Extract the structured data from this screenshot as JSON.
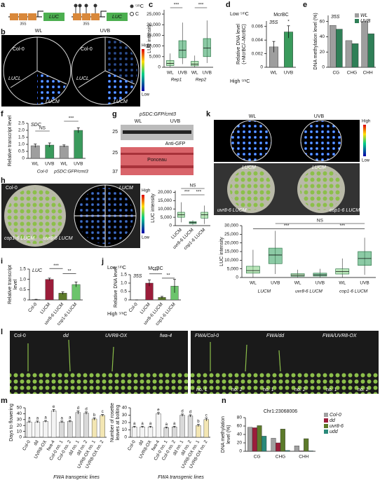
{
  "panel_labels": [
    "a",
    "b",
    "c",
    "d",
    "e",
    "f",
    "g",
    "h",
    "i",
    "j",
    "k",
    "l",
    "m",
    "n"
  ],
  "images": {
    "a": {
      "texts": [
        "35S",
        "LUC",
        "⁵ᵐC",
        "C"
      ]
    },
    "b": {
      "texts": [
        "WL",
        "UVB",
        "Col-0",
        "LUCL",
        "LUCM",
        "Col-0",
        "LUCL",
        "LUCM",
        "High",
        "Low"
      ]
    },
    "g": {
      "texts": [
        "pSDC:GFP/cmt3",
        "WL",
        "UVB",
        "25",
        "Anti-GFP",
        "Ponceau",
        "25",
        "37"
      ]
    },
    "h": {
      "texts": [
        "Col-0",
        "LUCM",
        "cop1-6 LUCM",
        "uvr8-6 LUCM",
        "High",
        "Low"
      ]
    },
    "k": {
      "texts": [
        "WL",
        "UVB",
        "High",
        "Low",
        "LUCM",
        "LUCM",
        "uvr8-6 LUCM",
        "cop1-6 LUCM"
      ]
    },
    "l": {
      "texts": [
        "Col-0",
        "dd",
        "UVR8-OX",
        "fwa-4",
        "FWA/Col-0",
        "FWA/dd",
        "FWA/UVR8-OX",
        "no. 1",
        "no. 2"
      ]
    }
  },
  "chart_data": [
    {
      "panel": "c",
      "type": "box",
      "ylabel": "LUC intensity",
      "categories": [
        "WL",
        "UVB",
        "WL",
        "UVB"
      ],
      "groups": [
        "Rep1",
        "Rep2"
      ],
      "series": [
        {
          "colors": [
            "#7fcf7f",
            "#2e9e5b",
            "#7fcf7f",
            "#2e9e5b"
          ],
          "values": [
            [
              0,
              800,
              1800,
              3200,
              6500
            ],
            [
              1500,
              4500,
              8000,
              12500,
              21000
            ],
            [
              0,
              700,
              1500,
              2800,
              5500
            ],
            [
              2000,
              5000,
              9000,
              13500,
              22000
            ]
          ]
        }
      ],
      "ylim": [
        0,
        27000
      ],
      "yticks": [
        0,
        {
          "value": 5000,
          "label": "5,000"
        },
        {
          "value": 10000,
          "label": "10,000"
        },
        {
          "value": 15000,
          "label": "15,000"
        },
        {
          "value": 20000,
          "label": "20,000"
        },
        {
          "value": 25000,
          "label": "25,000"
        }
      ],
      "annotations": [
        "***",
        "***"
      ]
    },
    {
      "panel": "d",
      "type": "bar",
      "title": "McrBC",
      "subtitle": "35S",
      "y_top_label": "Low ⁵ᵐC",
      "y_bottom_label": "High ⁵ᵐC",
      "ylabel": [
        "Relative DNA level",
        "(+McrBC/–McrBC)"
      ],
      "categories": [
        "WL",
        "UVB"
      ],
      "series": [
        {
          "colors": [
            "#9e9e9e",
            "#3a9a5c"
          ],
          "values": [
            0.003,
            0.0052
          ],
          "errors": [
            0.0008,
            0.0009
          ]
        }
      ],
      "ylim": [
        0,
        0.0068
      ],
      "yticks": [
        0,
        0.002,
        0.004,
        0.006
      ],
      "annotations": [
        "*"
      ]
    },
    {
      "panel": "e",
      "type": "bar",
      "subtitle": "35S",
      "ylabel": "DNA methylation level (%)",
      "categories": [
        "CG",
        "CHG",
        "CHH"
      ],
      "series": [
        {
          "name": "WL",
          "color": "#9e9e9e",
          "values": [
            55,
            35,
            60
          ]
        },
        {
          "name": "UVB",
          "color": "#2f7f57",
          "values": [
            50,
            31,
            44
          ]
        }
      ],
      "ylim": [
        0,
        68
      ],
      "yticks": [
        0,
        20,
        40,
        60
      ],
      "legend": "upper right"
    },
    {
      "panel": "f",
      "type": "bar",
      "subtitle": "SDC",
      "ylabel": "Relative transcript level",
      "categories": [
        "WL",
        "UVB",
        "WL",
        "UVB"
      ],
      "groups": [
        "Col-0",
        "pSDC:GFP/cmt3"
      ],
      "series": [
        {
          "colors": [
            "#9e9e9e",
            "#3a9a5c",
            "#9e9e9e",
            "#3a9a5c"
          ],
          "values": [
            0.9,
            0.95,
            0.88,
            2.0
          ],
          "errors": [
            0.12,
            0.15,
            0.08,
            0.18
          ]
        }
      ],
      "ylim": [
        0,
        2.5
      ],
      "yticks": [
        0,
        0.5,
        {
          "value": 1,
          "label": "1.0"
        },
        1.5,
        {
          "value": 2,
          "label": "2.0"
        },
        2.5
      ],
      "annotations": [
        "NS",
        "***"
      ]
    },
    {
      "panel": "h",
      "type": "box",
      "ylabel": "LUC intensity",
      "categories": [
        "LUCM",
        "uvr8-6 LUCM",
        "cop1-6 LUCM"
      ],
      "series": [
        {
          "colors": [
            "#7fcf7f",
            "#2e9e5b",
            "#7fcf7f"
          ],
          "values": [
            [
              2000,
              5000,
              6500,
              8000,
              14000
            ],
            [
              500,
              1200,
              1800,
              2400,
              3200
            ],
            [
              1000,
              4500,
              6500,
              8000,
              12000
            ]
          ]
        }
      ],
      "ylim": [
        0,
        21000
      ],
      "yticks": [
        0,
        {
          "value": 5000,
          "label": "5,000"
        },
        {
          "value": 10000,
          "label": "10,000"
        },
        {
          "value": 15000,
          "label": "15,000"
        },
        {
          "value": 20000,
          "label": "20,000"
        }
      ],
      "annotations": [
        "NS",
        "***",
        "***"
      ]
    },
    {
      "panel": "i",
      "type": "bar",
      "subtitle": "LUC",
      "ylabel": [
        "Relative transcript",
        "level"
      ],
      "categories": [
        "Col-0",
        "LUCM",
        "uvr8-6 LUCM",
        "cop1-6 LUCM"
      ],
      "series": [
        {
          "colors": [
            "#9e9e9e",
            "#9b1d3a",
            "#5c7a2a",
            "#6cc46c"
          ],
          "values": [
            0.02,
            1.0,
            0.33,
            0.75
          ],
          "errors": [
            0.01,
            0.06,
            0.06,
            0.12
          ]
        }
      ],
      "ylim": [
        0,
        1.5
      ],
      "yticks": [
        0,
        0.5,
        {
          "value": 1,
          "label": "1.0"
        },
        1.5
      ],
      "annotations": [
        "***",
        "**"
      ]
    },
    {
      "panel": "j",
      "type": "bar",
      "title": "McrBC",
      "subtitle": "35S",
      "y_top_label": "Low ⁵ᵐC",
      "y_bottom_label": "High ⁵ᵐC",
      "ylabel": "Relative DNA level",
      "categories": [
        "Col-0",
        "LUCM",
        "uvr8-6 LUCM",
        "cop1-6 LUCM"
      ],
      "series": [
        {
          "colors": [
            "#9e9e9e",
            "#9b1d3a",
            "#5c7a2a",
            "#6cc46c"
          ],
          "values": [
            0,
            1.0,
            0.15,
            0.82
          ],
          "errors": [
            0,
            0.18,
            0.06,
            0.4
          ]
        }
      ],
      "ylim": [
        0,
        1.5
      ],
      "yticks": [
        0,
        0.5,
        {
          "value": 1,
          "label": "1.0"
        },
        1.5
      ],
      "annotations": [
        "***",
        "**"
      ]
    },
    {
      "panel": "k",
      "type": "box",
      "ylabel": "LUC intensity",
      "categories": [
        "WL",
        "UVB",
        "WL",
        "UVB",
        "WL",
        "UVB"
      ],
      "groups": [
        "LUCM",
        "uvr8-6 LUCM",
        "cop1-6 LUCM"
      ],
      "series": [
        {
          "colors": [
            "#7fcf7f",
            "#2e9e5b",
            "#7fcf7f",
            "#2e9e5b",
            "#7fcf7f",
            "#2e9e5b"
          ],
          "values": [
            [
              0,
              2500,
              4000,
              6500,
              16000
            ],
            [
              2000,
              8000,
              13000,
              17000,
              27000
            ],
            [
              0,
              700,
              1300,
              2200,
              4500
            ],
            [
              0,
              800,
              1500,
              2500,
              5000
            ],
            [
              0,
              2000,
              3500,
              5000,
              11000
            ],
            [
              1500,
              7000,
              11000,
              15000,
              23000
            ]
          ]
        }
      ],
      "ylim": [
        0,
        30000
      ],
      "yticks": [
        0,
        {
          "value": 5000,
          "label": "5,000"
        },
        {
          "value": 10000,
          "label": "10,000"
        },
        {
          "value": 15000,
          "label": "15,000"
        },
        {
          "value": 20000,
          "label": "20,000"
        },
        {
          "value": 25000,
          "label": "25,000"
        },
        {
          "value": 30000,
          "label": "30,000"
        }
      ],
      "annotations": [
        "***",
        "NS",
        "***"
      ]
    },
    {
      "panel": "m",
      "type": "bar",
      "ylabel": "Days to flowering",
      "xlabel": "FWA transgenic lines",
      "categories": [
        "Col-0",
        "dd",
        "UVR8-OX",
        "fwa-4",
        "Col-0 no. 1",
        "Col-0 no. 2",
        "dd no. 1",
        "dd no. 2",
        "UVR8-OX no. 1",
        "UVR8-OX no. 2"
      ],
      "series": [
        {
          "colors": [
            "#f4f4f4",
            "#f4f4f4",
            "#f4f4f4",
            "#f4f4f4",
            "#d9d9d9",
            "#d9d9d9",
            "#d9d9d9",
            "#d9d9d9",
            "#f3e6b3",
            "#f3e6b3"
          ],
          "values": [
            26,
            26,
            27,
            45,
            26,
            27,
            42,
            41,
            31,
            37
          ],
          "errors": [
            1.5,
            1.5,
            1.5,
            2,
            1.5,
            1.5,
            2.5,
            2,
            2,
            1.5
          ],
          "letters": [
            "a",
            "a",
            "a",
            "e",
            "a",
            "a",
            "d",
            "d",
            "b",
            "c"
          ]
        }
      ],
      "ylim": [
        0,
        50
      ],
      "yticks": [
        0,
        10,
        20,
        30,
        40,
        50
      ]
    },
    {
      "panel": "m",
      "type": "bar",
      "ylabel": [
        "Number of rosette",
        "leaves at bolting"
      ],
      "xlabel": "FWA transgenic lines",
      "categories": [
        "Col-0",
        "dd",
        "UVR8-OX",
        "fwa-4",
        "Col-0 no. 1",
        "Col-0 no. 2",
        "dd no. 1",
        "dd no. 2",
        "UVR8-OX no. 1",
        "UVR8-OX no. 2"
      ],
      "series": [
        {
          "colors": [
            "#f4f4f4",
            "#f4f4f4",
            "#f4f4f4",
            "#f4f4f4",
            "#d9d9d9",
            "#d9d9d9",
            "#d9d9d9",
            "#d9d9d9",
            "#f3e6b3",
            "#f3e6b3"
          ],
          "values": [
            14,
            14,
            14,
            32,
            13,
            14,
            30,
            29,
            16,
            24
          ],
          "errors": [
            1,
            1,
            1,
            1.5,
            1,
            1,
            1.5,
            1.5,
            1.5,
            2
          ],
          "letters": [
            "a",
            "a",
            "a",
            "e",
            "a",
            "a",
            "d",
            "d",
            "b",
            "c"
          ]
        }
      ],
      "ylim": [
        0,
        40
      ],
      "yticks": [
        0,
        10,
        20,
        30,
        40
      ]
    },
    {
      "panel": "n",
      "type": "bar",
      "title": "Chr1:23068006",
      "ylabel": [
        "DNA methylation",
        "level (%)"
      ],
      "categories": [
        "CG",
        "CHG",
        "CHH"
      ],
      "series": [
        {
          "name": "Col-0",
          "color": "#a0a0a0",
          "values": [
            57,
            31,
            13
          ]
        },
        {
          "name": "dd",
          "color": "#9b1d3a",
          "values": [
            56,
            20,
            1
          ]
        },
        {
          "name": "uvr8-6",
          "color": "#5c7a2a",
          "values": [
            61,
            53,
            30
          ]
        },
        {
          "name": "udd",
          "color": "#2a8a7a",
          "values": [
            36,
            2,
            1
          ]
        }
      ],
      "ylim": [
        0,
        80
      ],
      "yticks": [
        0,
        20,
        40,
        60,
        80
      ],
      "legend": "upper right"
    }
  ]
}
